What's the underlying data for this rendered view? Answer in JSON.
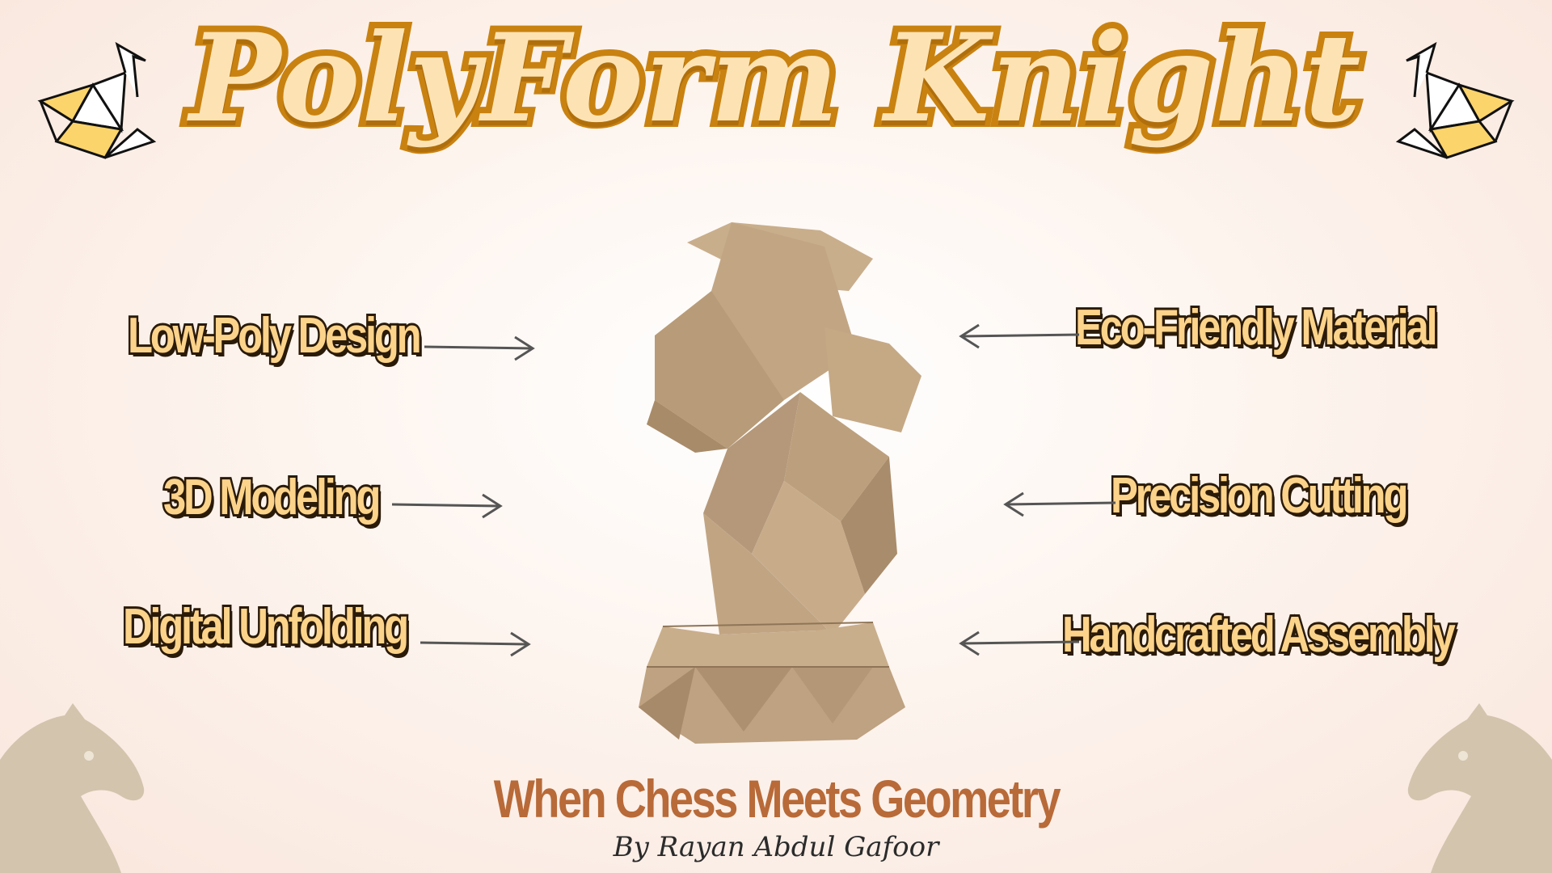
{
  "title": "PolyForm Knight",
  "features_left": [
    {
      "label": "Low-Poly Design"
    },
    {
      "label": "3D Modeling"
    },
    {
      "label": "Digital Unfolding"
    }
  ],
  "features_right": [
    {
      "label": "Eco-Friendly Material"
    },
    {
      "label": "Precision Cutting"
    },
    {
      "label": "Handcrafted Assembly"
    }
  ],
  "subtitle": "When Chess Meets Geometry",
  "byline": "By Rayan Abdul Gafoor",
  "icons": {
    "corner_top": "origami-swan-icon",
    "corner_bottom": "chess-knight-icon",
    "center": "cardboard-knight-sculpture"
  },
  "colors": {
    "title_fill": "#fde3b4",
    "title_stroke": "#c98210",
    "feature_fill": "#fcd38a",
    "feature_stroke": "#2a1a08",
    "subtitle": "#b86a38",
    "cardboard": "#c7ad8c"
  }
}
